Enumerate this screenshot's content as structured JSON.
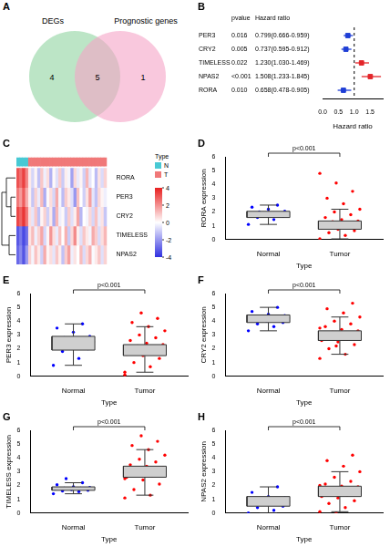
{
  "chart_data": [
    {
      "panel": "A",
      "type": "venn",
      "sets": [
        {
          "name": "DEGs",
          "color": "#8fd3a0"
        },
        {
          "name": "Prognostic genes",
          "color": "#f5a3c7"
        }
      ],
      "counts": [
        4,
        5,
        1
      ]
    },
    {
      "panel": "B",
      "type": "forest",
      "categories": [
        "PER3",
        "CRY2",
        "TIMELESS",
        "NPAS2",
        "RORA"
      ],
      "pvalue_header": "pvalue",
      "hr_header": "Hazard ratio",
      "pvalues": [
        "0.016",
        "0.005",
        "0.022",
        "<0.001",
        "0.010"
      ],
      "values": [
        0.799,
        0.737,
        1.23,
        1.508,
        0.658
      ],
      "lower": [
        0.666,
        0.595,
        1.03,
        1.233,
        0.478
      ],
      "upper": [
        0.959,
        0.912,
        1.469,
        1.845,
        0.905
      ],
      "hr_labels": [
        "0.799(0.666-0.959)",
        "0.737(0.595-0.912)",
        "1.230(1.030-1.469)",
        "1.508(1.233-1.845)",
        "0.658(0.478-0.905)"
      ],
      "colors": [
        "#1f3fd6",
        "#1f3fd6",
        "#e3262a",
        "#e3262a",
        "#1f3fd6"
      ],
      "marker": "square",
      "reference": 1,
      "x_label": "Hazard ratio",
      "xlim": [
        0,
        1.9
      ],
      "xticks": [
        {
          "value": 0,
          "label": "0.0"
        },
        0.5,
        {
          "value": 1,
          "label": "1.0"
        },
        1.5
      ],
      "grid": false
    },
    {
      "panel": "C",
      "type": "heatmap",
      "rows": [
        "RORA",
        "PER3",
        "CRY2",
        "TIMELESS",
        "NPAS2"
      ],
      "columns": [
        "N",
        "N",
        "N",
        "N",
        "T",
        "T",
        "T",
        "T",
        "T",
        "T",
        "T",
        "T",
        "T",
        "T",
        "T",
        "T",
        "T",
        "T",
        "T",
        "T",
        "T",
        "T",
        "T",
        "T",
        "T",
        "T",
        "T",
        "T",
        "T",
        "T"
      ],
      "group_legend_title": "Type",
      "group_legend": [
        {
          "name": "N",
          "color": "#48c9d4"
        },
        {
          "name": "T",
          "color": "#f07878"
        }
      ],
      "cells": [
        [
          3.1,
          2.6,
          3.4,
          2.2,
          0.4,
          -0.8,
          0.2,
          -1.2,
          1.0,
          -0.3,
          0.6,
          -1.5,
          0.1,
          -0.6,
          0.9,
          -1.0,
          0.3,
          -0.2,
          -1.8,
          0.7,
          -0.4,
          0.2,
          -0.9,
          1.3,
          -0.5,
          0.0,
          -1.3,
          0.5,
          -0.7,
          0.8
        ],
        [
          2.4,
          1.8,
          2.9,
          1.5,
          0.3,
          -1.1,
          0.8,
          -0.4,
          1.2,
          -1.6,
          0.1,
          0.6,
          -0.8,
          1.5,
          -0.2,
          -1.3,
          0.9,
          0.4,
          -0.6,
          -2.0,
          1.1,
          0.0,
          -0.9,
          0.5,
          1.7,
          -0.5,
          -1.2,
          0.7,
          0.2,
          -0.3
        ],
        [
          3.3,
          2.8,
          3.6,
          2.5,
          0.6,
          -0.5,
          1.0,
          -1.2,
          0.2,
          0.8,
          -0.9,
          0.4,
          -1.6,
          1.3,
          -0.3,
          0.1,
          -1.0,
          0.9,
          -0.6,
          0.3,
          1.6,
          -1.4,
          0.0,
          -0.2,
          0.7,
          -0.8,
          1.1,
          -0.4,
          0.5,
          -1.1
        ],
        [
          -3.2,
          -2.6,
          -3.5,
          -2.8,
          0.5,
          1.2,
          -0.3,
          0.8,
          1.6,
          -0.8,
          0.2,
          1.9,
          0.6,
          -0.4,
          1.1,
          0.0,
          1.4,
          -1.0,
          0.7,
          2.1,
          0.3,
          -0.6,
          1.0,
          0.4,
          -0.2,
          1.5,
          0.9,
          -0.7,
          0.6,
          1.3
        ],
        [
          -2.9,
          -2.3,
          -3.3,
          -2.0,
          0.8,
          -0.2,
          1.1,
          0.4,
          -0.9,
          1.5,
          0.2,
          0.6,
          -0.5,
          1.0,
          0.3,
          -1.2,
          0.9,
          1.7,
          -0.3,
          0.5,
          0.0,
          1.2,
          -0.7,
          0.7,
          1.4,
          -0.1,
          0.4,
          1.0,
          -0.6,
          0.8
        ]
      ],
      "color_range": [
        -4,
        4
      ],
      "color_ticks": [
        4,
        2,
        0,
        -2,
        -4
      ]
    },
    {
      "panel": "D",
      "type": "box",
      "categories": [
        "Normal",
        "Tumor"
      ],
      "x_label": "Type",
      "y_label": "RORA expression",
      "annotation": "p<0.001",
      "ylim": [
        0,
        6
      ],
      "yticks": [
        0,
        1,
        2,
        3,
        4,
        5,
        6
      ],
      "grid": false,
      "color": "#cfcfcf",
      "colors": [
        "#0000ff",
        "#ff0000"
      ],
      "box": [
        {
          "min": 1.1,
          "q1": 1.6,
          "median": 1.85,
          "q3": 2.05,
          "max": 2.5
        },
        {
          "min": 0.05,
          "q1": 0.75,
          "median": 1.05,
          "q3": 1.35,
          "max": 2.2
        }
      ],
      "points": [
        [
          1.1,
          1.45,
          1.6,
          1.7,
          1.8,
          1.85,
          1.9,
          2.0,
          2.05,
          2.2,
          2.35,
          2.5
        ],
        [
          0.05,
          0.3,
          0.5,
          0.65,
          0.75,
          0.85,
          0.9,
          1.0,
          1.05,
          1.1,
          1.15,
          1.2,
          1.3,
          1.35,
          1.45,
          1.6,
          1.8,
          2.0,
          2.2,
          2.6,
          3.0,
          3.5,
          4.1,
          4.8
        ]
      ]
    },
    {
      "panel": "E",
      "type": "box",
      "categories": [
        "Normal",
        "Tumor"
      ],
      "x_label": "Type",
      "y_label": "PER3 expression",
      "annotation": "p<0.001",
      "ylim": [
        0,
        6
      ],
      "yticks": [
        0,
        1,
        2,
        3,
        4,
        5,
        6
      ],
      "grid": false,
      "color": "#cfcfcf",
      "colors": [
        "#0000ff",
        "#ff0000"
      ],
      "box": [
        {
          "min": 0.8,
          "q1": 1.9,
          "median": 2.5,
          "q3": 2.9,
          "max": 3.8
        },
        {
          "min": 0.3,
          "q1": 1.5,
          "median": 1.85,
          "q3": 2.3,
          "max": 3.6
        }
      ],
      "points": [
        [
          0.8,
          1.3,
          1.8,
          2.0,
          2.3,
          2.5,
          2.6,
          2.8,
          2.9,
          3.2,
          3.5,
          3.8
        ],
        [
          0.3,
          0.7,
          1.0,
          1.3,
          1.5,
          1.6,
          1.7,
          1.8,
          1.85,
          1.9,
          2.0,
          2.1,
          2.2,
          2.3,
          2.4,
          2.6,
          2.8,
          3.0,
          3.3,
          3.6,
          3.9,
          4.2,
          4.6,
          0.1
        ]
      ]
    },
    {
      "panel": "F",
      "type": "box",
      "categories": [
        "Normal",
        "Tumor"
      ],
      "x_label": "Type",
      "y_label": "CRY2 expression",
      "annotation": "p<0.001",
      "ylim": [
        0,
        6
      ],
      "yticks": [
        0,
        1,
        2,
        3,
        4,
        5,
        6
      ],
      "grid": false,
      "color": "#cfcfcf",
      "colors": [
        "#0000ff",
        "#ff0000"
      ],
      "box": [
        {
          "min": 3.3,
          "q1": 3.9,
          "median": 4.2,
          "q3": 4.45,
          "max": 5.0
        },
        {
          "min": 1.6,
          "q1": 2.6,
          "median": 3.0,
          "q3": 3.3,
          "max": 4.3
        }
      ],
      "points": [
        [
          3.3,
          3.6,
          3.8,
          3.9,
          4.0,
          4.15,
          4.2,
          4.3,
          4.4,
          4.5,
          4.7,
          5.0
        ],
        [
          1.3,
          1.6,
          2.0,
          2.3,
          2.5,
          2.6,
          2.7,
          2.8,
          2.9,
          3.0,
          3.0,
          3.1,
          3.2,
          3.3,
          3.4,
          3.6,
          3.8,
          4.0,
          4.3,
          4.6,
          4.9,
          5.3,
          2.2,
          3.5
        ]
      ]
    },
    {
      "panel": "G",
      "type": "box",
      "categories": [
        "Normal",
        "Tumor"
      ],
      "x_label": "Type",
      "y_label": "TIMELESS expression",
      "annotation": "p<0.001",
      "ylim": [
        0,
        6
      ],
      "yticks": [
        0,
        1,
        2,
        3,
        4,
        5,
        6
      ],
      "grid": false,
      "color": "#cfcfcf",
      "colors": [
        "#0000ff",
        "#ff0000"
      ],
      "box": [
        {
          "min": 1.4,
          "q1": 1.65,
          "median": 1.8,
          "q3": 1.9,
          "max": 2.2
        },
        {
          "min": 1.3,
          "q1": 2.6,
          "median": 3.0,
          "q3": 3.4,
          "max": 4.6
        }
      ],
      "points": [
        [
          1.4,
          1.55,
          1.6,
          1.65,
          1.7,
          1.75,
          1.8,
          1.8,
          1.85,
          1.9,
          2.05,
          2.2,
          2.5
        ],
        [
          1.1,
          1.3,
          1.7,
          2.1,
          2.4,
          2.6,
          2.7,
          2.8,
          2.9,
          3.0,
          3.0,
          3.1,
          3.2,
          3.3,
          3.4,
          3.5,
          3.7,
          3.9,
          4.2,
          4.6,
          4.9,
          5.2,
          5.6,
          2.5
        ]
      ]
    },
    {
      "panel": "H",
      "type": "box",
      "categories": [
        "Normal",
        "Tumor"
      ],
      "x_label": "Type",
      "y_label": "NPAS2 expression",
      "annotation": "p<0.001",
      "ylim": [
        0,
        6
      ],
      "yticks": [
        0,
        1,
        2,
        3,
        4,
        5,
        6
      ],
      "grid": false,
      "color": "#cfcfcf",
      "colors": [
        "#0000ff",
        "#ff0000"
      ],
      "box": [
        {
          "min": 0.0,
          "q1": 0.5,
          "median": 0.85,
          "q3": 1.2,
          "max": 1.9
        },
        {
          "min": 0.1,
          "q1": 1.2,
          "median": 1.55,
          "q3": 1.95,
          "max": 3.0
        }
      ],
      "points": [
        [
          0.0,
          0.2,
          0.4,
          0.5,
          0.65,
          0.8,
          0.85,
          0.9,
          1.1,
          1.2,
          1.5,
          1.9
        ],
        [
          0.1,
          0.4,
          0.7,
          0.9,
          1.1,
          1.2,
          1.3,
          1.4,
          1.5,
          1.55,
          1.6,
          1.7,
          1.8,
          1.9,
          1.95,
          2.1,
          2.3,
          2.6,
          3.0,
          3.4,
          3.8,
          4.2,
          0.0,
          2.0
        ]
      ]
    }
  ]
}
